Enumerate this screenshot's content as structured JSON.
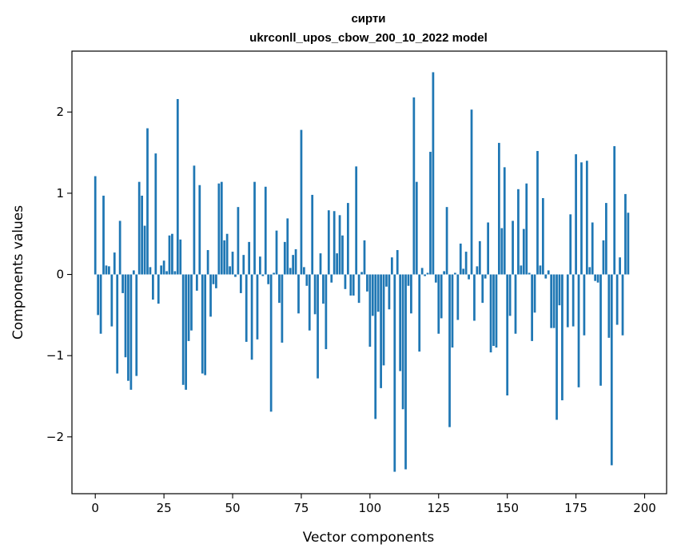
{
  "chart_data": {
    "type": "bar",
    "title_line1": "сирти",
    "title_line2": "ukrconll_upos_cbow_200_10_2022 model",
    "xlabel": "Vector components",
    "ylabel": "Components values",
    "xlim": [
      -8.5,
      208
    ],
    "ylim": [
      -2.7,
      2.75
    ],
    "xticks": [
      0,
      25,
      50,
      75,
      100,
      125,
      150,
      175,
      200
    ],
    "yticks": [
      -2,
      -1,
      0,
      1,
      2
    ],
    "ytick_labels": [
      "−2",
      "−1",
      "0",
      "1",
      "2"
    ],
    "grid": false,
    "bar_color": "#1f77b4",
    "values": [
      1.21,
      -0.5,
      -0.73,
      0.97,
      0.11,
      0.1,
      -0.64,
      0.27,
      -1.22,
      0.66,
      -0.23,
      -1.02,
      -1.31,
      -1.42,
      0.05,
      -1.25,
      1.14,
      0.97,
      0.6,
      1.8,
      0.09,
      -0.31,
      1.49,
      -0.36,
      0.11,
      0.17,
      0.04,
      0.48,
      0.5,
      0.04,
      2.16,
      0.43,
      -1.36,
      -1.42,
      -0.82,
      -0.69,
      1.34,
      -0.2,
      1.1,
      -1.22,
      -1.24,
      0.3,
      -0.52,
      -0.12,
      -0.17,
      1.12,
      1.14,
      0.42,
      0.5,
      0.1,
      0.28,
      -0.03,
      0.83,
      -0.23,
      0.24,
      -0.83,
      0.4,
      -1.05,
      1.14,
      -0.8,
      0.22,
      -0.02,
      1.08,
      -0.12,
      -1.69,
      0.02,
      0.54,
      -0.35,
      -0.84,
      0.4,
      0.69,
      0.08,
      0.24,
      0.31,
      -0.48,
      1.78,
      0.09,
      -0.14,
      -0.69,
      0.98,
      -0.49,
      -1.28,
      0.26,
      -0.36,
      -0.92,
      0.79,
      -0.1,
      0.78,
      0.26,
      0.73,
      0.48,
      -0.18,
      0.88,
      -0.26,
      -0.26,
      1.33,
      -0.35,
      0.03,
      0.42,
      -0.21,
      -0.89,
      -0.51,
      -1.78,
      -0.46,
      -1.4,
      -1.12,
      -0.15,
      -0.43,
      0.21,
      -2.43,
      0.3,
      -1.19,
      -1.66,
      -2.4,
      -0.14,
      -0.48,
      2.18,
      1.14,
      -0.95,
      0.08,
      -0.02,
      0.02,
      1.51,
      2.49,
      -0.1,
      -0.73,
      -0.54,
      0.04,
      0.83,
      -1.88,
      -0.9,
      0.02,
      -0.56,
      0.38,
      0.07,
      0.28,
      -0.06,
      2.03,
      -0.57,
      0.1,
      0.41,
      -0.35,
      -0.05,
      0.64,
      -0.96,
      -0.88,
      -0.9,
      1.62,
      0.57,
      1.32,
      -1.49,
      -0.51,
      0.66,
      -0.73,
      1.05,
      0.11,
      0.56,
      1.12,
      0.02,
      -0.82,
      -0.47,
      1.52,
      0.11,
      0.94,
      -0.05,
      0.05,
      -0.66,
      -0.66,
      -1.79,
      -0.38,
      -1.55,
      0.0,
      -0.65,
      0.74,
      -0.64,
      1.48,
      -1.39,
      1.38,
      -0.75,
      1.4,
      0.09,
      0.64,
      -0.08,
      -0.1,
      -1.37,
      0.42,
      0.88,
      -0.78,
      -2.35,
      1.58,
      -0.62,
      0.21,
      -0.75,
      0.99,
      0.76
    ]
  }
}
